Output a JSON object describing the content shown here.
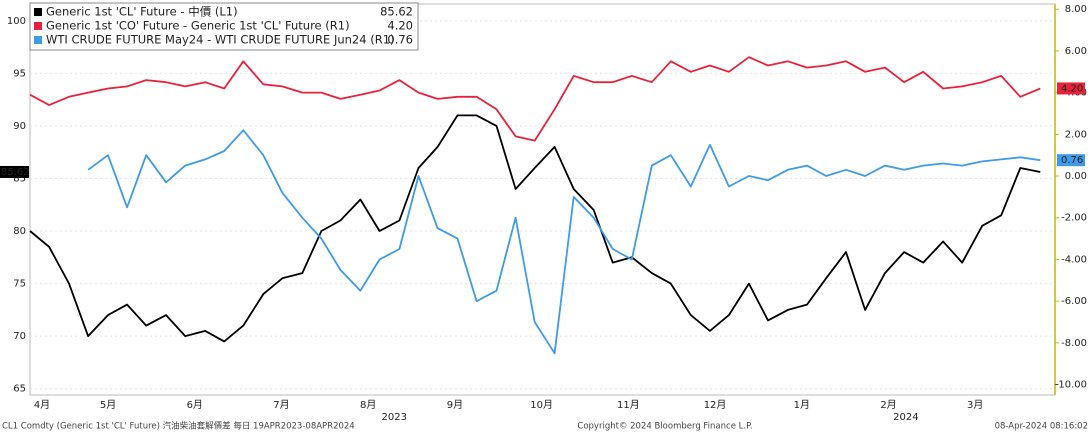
{
  "chart_data": {
    "type": "line",
    "xlim": [
      0.6,
      12.42
    ],
    "ylim": [
      64.4,
      101.6
    ],
    "y2lim": [
      -10.5,
      8.25
    ],
    "yticks": [
      65,
      70,
      75,
      80,
      85,
      90,
      95,
      100
    ],
    "y2ticks": [
      {
        "value": 8,
        "label": "8.00"
      },
      {
        "value": 6,
        "label": "6.00"
      },
      {
        "value": 4,
        "label": "4.00"
      },
      {
        "value": 2,
        "label": "2.00"
      },
      {
        "value": 0,
        "label": "0.00"
      },
      {
        "value": -2,
        "label": "-2.00"
      },
      {
        "value": -4,
        "label": "-4.00"
      },
      {
        "value": -6,
        "label": "-6.00"
      },
      {
        "value": -8,
        "label": "-8.00"
      },
      {
        "value": -10,
        "label": "-10.00"
      }
    ],
    "xticks": [
      {
        "value": 0.5,
        "label": "4月"
      },
      {
        "value": 1.5,
        "label": "5月"
      },
      {
        "value": 2.5,
        "label": "6月"
      },
      {
        "value": 3.5,
        "label": "7月"
      },
      {
        "value": 4.5,
        "label": "8月"
      },
      {
        "value": 5.5,
        "label": "9月"
      },
      {
        "value": 6.5,
        "label": "10月"
      },
      {
        "value": 7.5,
        "label": "11月"
      },
      {
        "value": 8.5,
        "label": "12月"
      },
      {
        "value": 9.5,
        "label": "1月"
      },
      {
        "value": 10.5,
        "label": "2月"
      },
      {
        "value": 11.5,
        "label": "3月"
      }
    ],
    "year_labels": [
      {
        "value": 4.8,
        "label": "2023"
      },
      {
        "value": 10.7,
        "label": "2024"
      }
    ],
    "grid": true,
    "x": [
      0.6,
      0.82,
      1.05,
      1.27,
      1.5,
      1.72,
      1.94,
      2.17,
      2.39,
      2.62,
      2.84,
      3.06,
      3.29,
      3.51,
      3.74,
      3.96,
      4.18,
      4.41,
      4.63,
      4.86,
      5.08,
      5.3,
      5.53,
      5.75,
      5.98,
      6.2,
      6.42,
      6.65,
      6.87,
      7.1,
      7.32,
      7.54,
      7.77,
      7.99,
      8.22,
      8.44,
      8.66,
      8.89,
      9.11,
      9.34,
      9.56,
      9.78,
      10.01,
      10.23,
      10.46,
      10.68,
      10.9,
      11.13,
      11.35,
      11.58,
      11.8,
      12.02,
      12.25
    ],
    "series": [
      {
        "name": "Generic 1st 'CL' Future - 中價 (L1)",
        "color": "#000000",
        "axis": "y",
        "last_label": "85.62",
        "values": [
          80,
          78.5,
          75,
          70,
          72,
          73,
          71,
          72,
          70,
          70.5,
          69.5,
          71,
          74,
          75.5,
          76,
          80,
          81,
          83,
          80,
          81,
          86,
          88,
          91,
          91,
          90,
          84,
          86,
          88,
          84,
          82,
          77,
          77.5,
          76,
          75,
          72,
          70.5,
          72,
          75,
          71.5,
          72.5,
          73,
          75.5,
          78,
          72.5,
          76,
          78,
          77,
          79,
          77,
          80.5,
          81.5,
          86,
          85.62
        ]
      },
      {
        "name": "Generic 1st 'CO' Future - Generic 1st 'CL' Future (R1)",
        "color": "#e8223b",
        "axis": "y2",
        "last_label": "4.20",
        "values": [
          3.9,
          3.4,
          3.8,
          4.0,
          4.2,
          4.3,
          4.6,
          4.5,
          4.3,
          4.5,
          4.2,
          5.5,
          4.4,
          4.3,
          4.0,
          4.0,
          3.7,
          3.9,
          4.1,
          4.6,
          4.0,
          3.7,
          3.8,
          3.8,
          3.2,
          1.9,
          1.7,
          3.2,
          4.8,
          4.5,
          4.5,
          4.8,
          4.5,
          5.5,
          5.0,
          5.3,
          5.0,
          5.7,
          5.3,
          5.5,
          5.2,
          5.3,
          5.5,
          5.0,
          5.2,
          4.5,
          5.0,
          4.2,
          4.3,
          4.5,
          4.8,
          3.8,
          4.2
        ]
      },
      {
        "name": "WTI CRUDE FUTURE May24 - WTI CRUDE FUTURE Jun24 (R1)",
        "color": "#3d9be9",
        "axis": "y2",
        "last_label": "0.76",
        "values": [
          null,
          null,
          null,
          0.3,
          1.0,
          -1.5,
          1.0,
          -0.3,
          0.5,
          0.8,
          1.2,
          2.2,
          1.0,
          -0.8,
          -2.0,
          -3.0,
          -4.5,
          -5.5,
          -4.0,
          -3.5,
          0.0,
          -2.5,
          -3.0,
          -6.0,
          -5.5,
          -2.0,
          -7.0,
          -8.5,
          -1.0,
          -2.0,
          -3.5,
          -4.0,
          0.5,
          1.0,
          -0.5,
          1.5,
          -0.5,
          0.0,
          -0.2,
          0.3,
          0.5,
          0.0,
          0.3,
          0.0,
          0.5,
          0.3,
          0.5,
          0.6,
          0.5,
          0.7,
          0.8,
          0.9,
          0.76
        ]
      }
    ],
    "footer_left": "CL1 Comdty (Generic 1st 'CL' Future) 汽油柴油套解價差  每日 19APR2023-08APR2024",
    "footer_center": "Copyright© 2024 Bloomberg Finance L.P.",
    "footer_right": "08-Apr-2024 08:16:02"
  }
}
